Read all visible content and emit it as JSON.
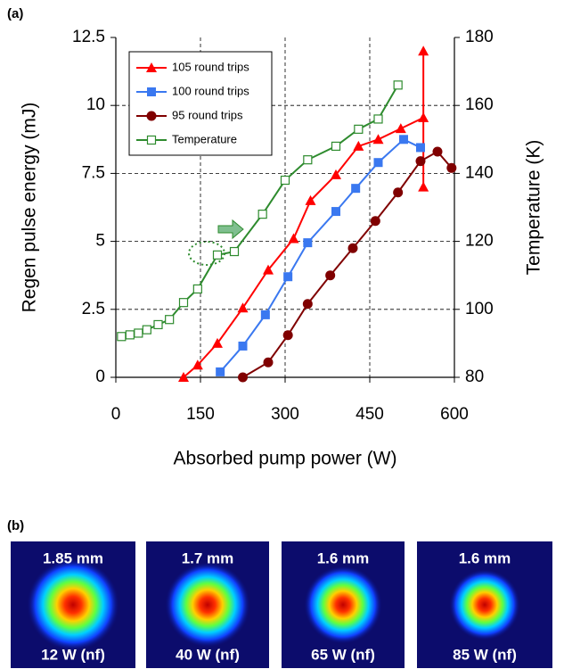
{
  "chart_data": {
    "type": "line",
    "xlabel": "Absorbed pump power (W)",
    "ylabel": "Regen pulse energy (mJ)",
    "y2label": "Temperature (K)",
    "xlim": [
      0,
      600
    ],
    "xticks": [
      0,
      150,
      300,
      450,
      600
    ],
    "ylim": [
      0,
      12.5
    ],
    "yticks": [
      0,
      2.5,
      5,
      7.5,
      10,
      12.5
    ],
    "y2lim": [
      80,
      180
    ],
    "y2ticks": [
      80,
      100,
      120,
      140,
      160,
      180
    ],
    "grid": true,
    "series": [
      {
        "name": "105 round trips",
        "color": "#ff0000",
        "marker": "triangle",
        "x": [
          120,
          145,
          180,
          225,
          270,
          315,
          345,
          390,
          430,
          465,
          505,
          545,
          545,
          545
        ],
        "values": [
          0,
          0.45,
          1.25,
          2.55,
          3.95,
          5.1,
          6.5,
          7.45,
          8.5,
          8.75,
          9.15,
          9.55,
          7.0,
          12.0
        ]
      },
      {
        "name": "100 round trips",
        "color": "#3a78f0",
        "marker": "square",
        "x": [
          185,
          225,
          265,
          305,
          340,
          390,
          425,
          465,
          510,
          540
        ],
        "values": [
          0.2,
          1.15,
          2.3,
          3.7,
          4.95,
          6.1,
          6.95,
          7.9,
          8.75,
          8.45
        ]
      },
      {
        "name": "95 round trips",
        "color": "#800000",
        "marker": "circle",
        "x": [
          225,
          270,
          305,
          340,
          380,
          420,
          460,
          500,
          540,
          570,
          595
        ],
        "values": [
          0,
          0.55,
          1.55,
          2.7,
          3.75,
          4.75,
          5.75,
          6.8,
          7.95,
          8.3,
          7.7
        ]
      },
      {
        "name": "Temperature",
        "color": "#2e8b2e",
        "marker": "open-square",
        "axis": "y2",
        "x": [
          10,
          25,
          40,
          55,
          75,
          95,
          120,
          145,
          180,
          210,
          260,
          300,
          340,
          390,
          430,
          465,
          500
        ],
        "values": [
          92,
          92.5,
          93,
          94,
          95.5,
          97,
          102,
          106,
          116,
          117,
          128,
          138,
          144,
          148,
          153,
          156,
          166
        ]
      }
    ]
  },
  "panel_labels": [
    "(a)",
    "(b)"
  ],
  "beam_profiles": [
    {
      "diameter": "1.85 mm",
      "power": "12 W (nf)"
    },
    {
      "diameter": "1.7 mm",
      "power": "40 W (nf)"
    },
    {
      "diameter": "1.6 mm",
      "power": "65 W (nf)"
    },
    {
      "diameter": "1.6 mm",
      "power": "85 W (nf)"
    }
  ]
}
